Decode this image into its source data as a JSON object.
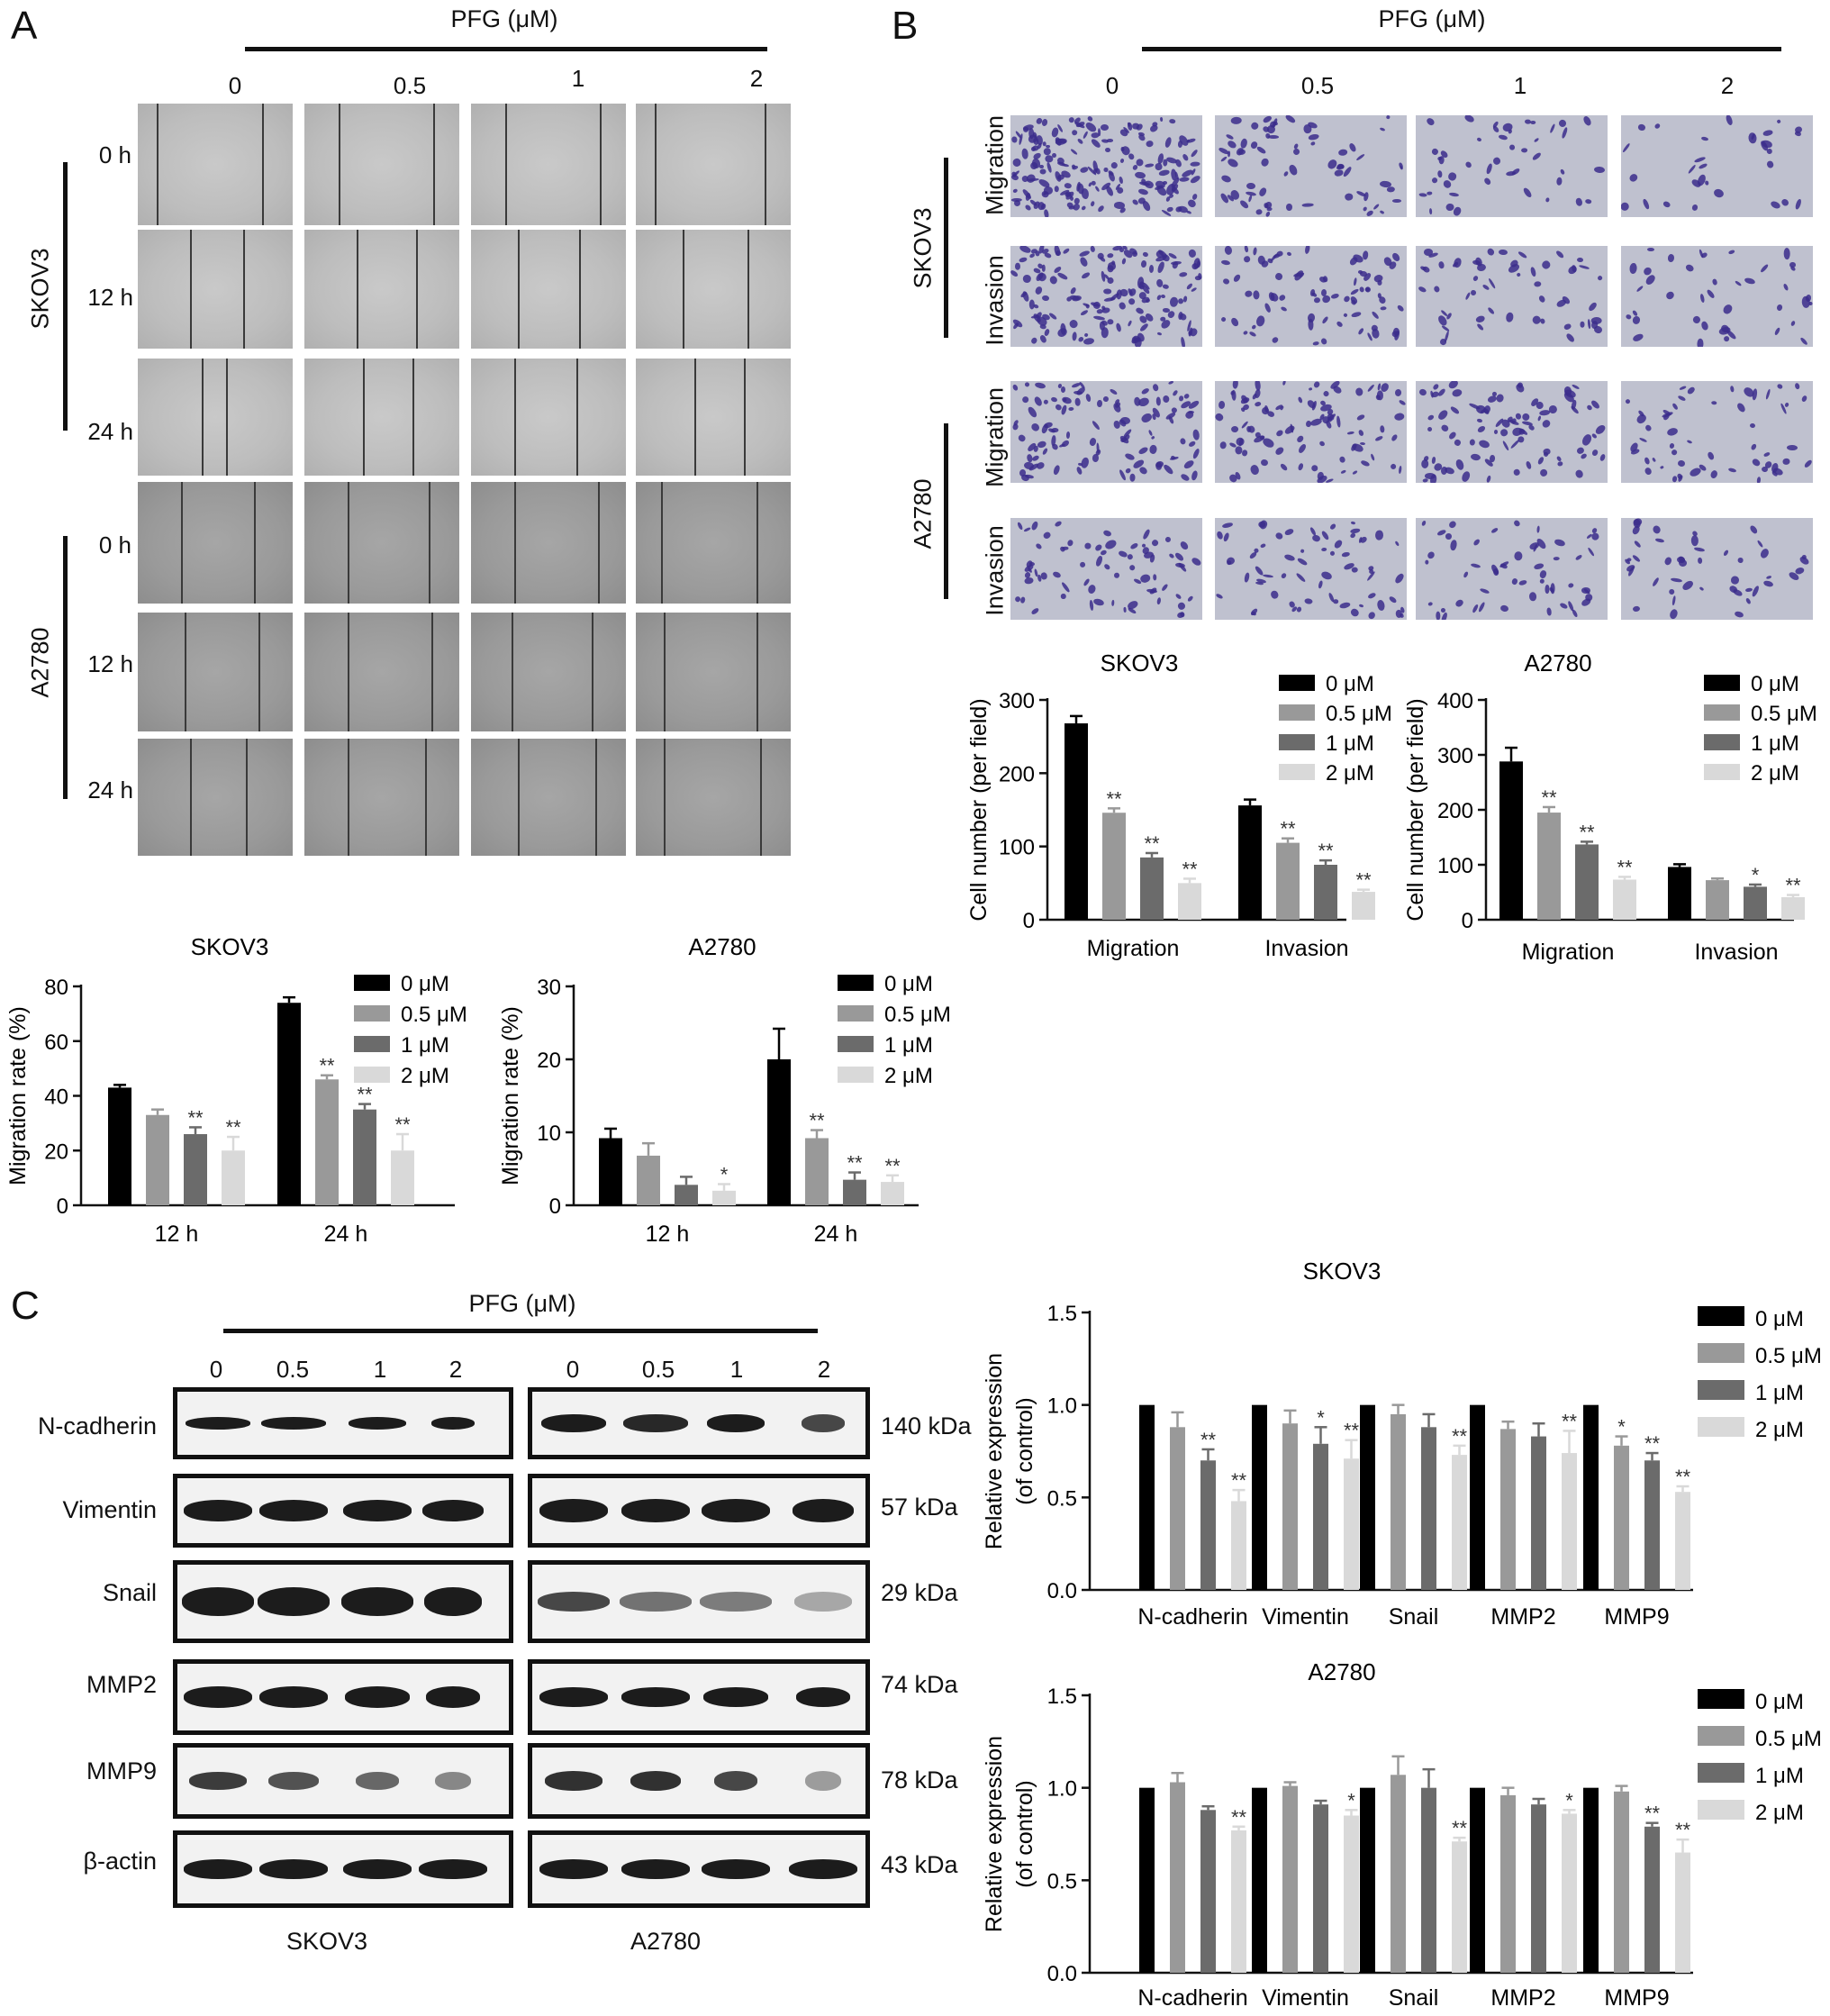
{
  "panels": {
    "a": "A",
    "b": "B",
    "c": "C"
  },
  "pfg_header": "PFG (μM)",
  "concentrations": [
    "0",
    "0.5",
    "1",
    "2"
  ],
  "cell_lines": {
    "skov3": "SKOV3",
    "a2780": "A2780"
  },
  "timepoints": [
    "0 h",
    "12 h",
    "24 h"
  ],
  "assay_rows": [
    "Migration",
    "Invasion"
  ],
  "blot": {
    "proteins": [
      "N-cadherin",
      "Vimentin",
      "Snail",
      "MMP2",
      "MMP9",
      "β-actin"
    ],
    "sizes": [
      "140 kDa",
      "57 kDa",
      "29 kDa",
      "74 kDa",
      "78 kDa",
      "43 kDa"
    ],
    "footer": [
      "SKOV3",
      "A2780"
    ]
  },
  "legend": [
    "0 μM",
    "0.5 μM",
    "1 μM",
    "2 μM"
  ],
  "colors": {
    "c0": "#000000",
    "c1": "#999999",
    "c2": "#6b6b6b",
    "c3": "#d9d9d9"
  },
  "chart_data": [
    {
      "id": "a_skov3",
      "type": "bar",
      "title": "SKOV3",
      "categories": [
        "12 h",
        "24 h"
      ],
      "ylabel": "Migration rate (%)",
      "ylim": [
        0,
        80
      ],
      "yticks": [
        0,
        20,
        40,
        60,
        80
      ],
      "series": [
        {
          "name": "0 μM",
          "values": [
            43,
            74
          ],
          "err": [
            1,
            2
          ],
          "sig": [
            "",
            ""
          ]
        },
        {
          "name": "0.5 μM",
          "values": [
            33,
            46
          ],
          "err": [
            2,
            1.5
          ],
          "sig": [
            "",
            "**"
          ]
        },
        {
          "name": "1 μM",
          "values": [
            26,
            35
          ],
          "err": [
            2.5,
            2
          ],
          "sig": [
            "**",
            "**"
          ]
        },
        {
          "name": "2 μM",
          "values": [
            20,
            20
          ],
          "err": [
            5,
            6
          ],
          "sig": [
            "**",
            "**"
          ]
        }
      ]
    },
    {
      "id": "a_a2780",
      "type": "bar",
      "title": "A2780",
      "categories": [
        "12 h",
        "24 h"
      ],
      "ylabel": "Migration rate (%)",
      "ylim": [
        0,
        30
      ],
      "yticks": [
        0,
        10,
        20,
        30
      ],
      "series": [
        {
          "name": "0 μM",
          "values": [
            9.2,
            20
          ],
          "err": [
            1.3,
            4.2
          ],
          "sig": [
            "",
            ""
          ]
        },
        {
          "name": "0.5 μM",
          "values": [
            6.8,
            9.2
          ],
          "err": [
            1.7,
            1.1
          ],
          "sig": [
            "",
            "**"
          ]
        },
        {
          "name": "1 μM",
          "values": [
            2.8,
            3.5
          ],
          "err": [
            1.1,
            1.0
          ],
          "sig": [
            "",
            "**"
          ]
        },
        {
          "name": "2 μM",
          "values": [
            2.0,
            3.2
          ],
          "err": [
            0.9,
            0.9
          ],
          "sig": [
            "*",
            "**"
          ]
        }
      ]
    },
    {
      "id": "b_skov3",
      "type": "bar",
      "title": "SKOV3",
      "categories": [
        "Migration",
        "Invasion"
      ],
      "ylabel": "Cell number (per field)",
      "ylim": [
        0,
        300
      ],
      "yticks": [
        0,
        100,
        200,
        300
      ],
      "series": [
        {
          "name": "0 μM",
          "values": [
            268,
            156
          ],
          "err": [
            10,
            8
          ],
          "sig": [
            "",
            ""
          ]
        },
        {
          "name": "0.5 μM",
          "values": [
            146,
            105
          ],
          "err": [
            6,
            6
          ],
          "sig": [
            "**",
            "**"
          ]
        },
        {
          "name": "1 μM",
          "values": [
            85,
            75
          ],
          "err": [
            6,
            6
          ],
          "sig": [
            "**",
            "**"
          ]
        },
        {
          "name": "2 μM",
          "values": [
            50,
            38
          ],
          "err": [
            6,
            3
          ],
          "sig": [
            "**",
            "**"
          ]
        }
      ]
    },
    {
      "id": "b_a2780",
      "type": "bar",
      "title": "A2780",
      "categories": [
        "Migration",
        "Invasion"
      ],
      "ylabel": "Cell number (per field)",
      "ylim": [
        0,
        400
      ],
      "yticks": [
        0,
        100,
        200,
        300,
        400
      ],
      "series": [
        {
          "name": "0 μM",
          "values": [
            288,
            96
          ],
          "err": [
            25,
            5
          ],
          "sig": [
            "",
            ""
          ]
        },
        {
          "name": "0.5 μM",
          "values": [
            195,
            72
          ],
          "err": [
            10,
            3
          ],
          "sig": [
            "**",
            ""
          ]
        },
        {
          "name": "1 μM",
          "values": [
            137,
            60
          ],
          "err": [
            5,
            4
          ],
          "sig": [
            "**",
            "*"
          ]
        },
        {
          "name": "2 μM",
          "values": [
            73,
            41
          ],
          "err": [
            5,
            4
          ],
          "sig": [
            "**",
            "**"
          ]
        }
      ]
    },
    {
      "id": "c_skov3",
      "type": "bar",
      "title": "SKOV3",
      "categories": [
        "N-cadherin",
        "Vimentin",
        "Snail",
        "MMP2",
        "MMP9"
      ],
      "ylabel": "Relative expression (of control)",
      "ylim": [
        0,
        1.5
      ],
      "yticks": [
        "0.0",
        "0.5",
        "1.0",
        "1.5"
      ],
      "series": [
        {
          "name": "0 μM",
          "values": [
            1.0,
            1.0,
            1.0,
            1.0,
            1.0
          ],
          "err": [
            0,
            0,
            0,
            0,
            0
          ],
          "sig": [
            "",
            "",
            "",
            "",
            ""
          ]
        },
        {
          "name": "0.5 μM",
          "values": [
            0.88,
            0.9,
            0.95,
            0.87,
            0.78
          ],
          "err": [
            0.08,
            0.07,
            0.05,
            0.04,
            0.05
          ],
          "sig": [
            "",
            "",
            "",
            "",
            "*"
          ]
        },
        {
          "name": "1 μM",
          "values": [
            0.7,
            0.79,
            0.88,
            0.83,
            0.7
          ],
          "err": [
            0.06,
            0.09,
            0.07,
            0.07,
            0.04
          ],
          "sig": [
            "**",
            "*",
            "",
            "",
            "**"
          ]
        },
        {
          "name": "2 μM",
          "values": [
            0.48,
            0.71,
            0.73,
            0.74,
            0.53
          ],
          "err": [
            0.06,
            0.1,
            0.05,
            0.12,
            0.03
          ],
          "sig": [
            "**",
            "**",
            "**",
            "**",
            "**"
          ]
        }
      ]
    },
    {
      "id": "c_a2780",
      "type": "bar",
      "title": "A2780",
      "categories": [
        "N-cadherin",
        "Vimentin",
        "Snail",
        "MMP2",
        "MMP9"
      ],
      "ylabel": "Relative expression (of control)",
      "ylim": [
        0,
        1.5
      ],
      "yticks": [
        "0.0",
        "0.5",
        "1.0",
        "1.5"
      ],
      "series": [
        {
          "name": "0 μM",
          "values": [
            1.0,
            1.0,
            1.0,
            1.0,
            1.0
          ],
          "err": [
            0,
            0,
            0,
            0,
            0
          ],
          "sig": [
            "",
            "",
            "",
            "",
            ""
          ]
        },
        {
          "name": "0.5 μM",
          "values": [
            1.03,
            1.01,
            1.07,
            0.96,
            0.98
          ],
          "err": [
            0.05,
            0.02,
            0.1,
            0.04,
            0.03
          ],
          "sig": [
            "",
            "",
            "",
            "",
            ""
          ]
        },
        {
          "name": "1 μM",
          "values": [
            0.88,
            0.91,
            1.0,
            0.91,
            0.79
          ],
          "err": [
            0.02,
            0.02,
            0.1,
            0.03,
            0.02
          ],
          "sig": [
            "",
            "",
            "",
            "",
            "**"
          ]
        },
        {
          "name": "2 μM",
          "values": [
            0.77,
            0.85,
            0.71,
            0.86,
            0.65
          ],
          "err": [
            0.02,
            0.03,
            0.02,
            0.02,
            0.07
          ],
          "sig": [
            "**",
            "*",
            "**",
            "*",
            "**"
          ]
        }
      ]
    }
  ]
}
